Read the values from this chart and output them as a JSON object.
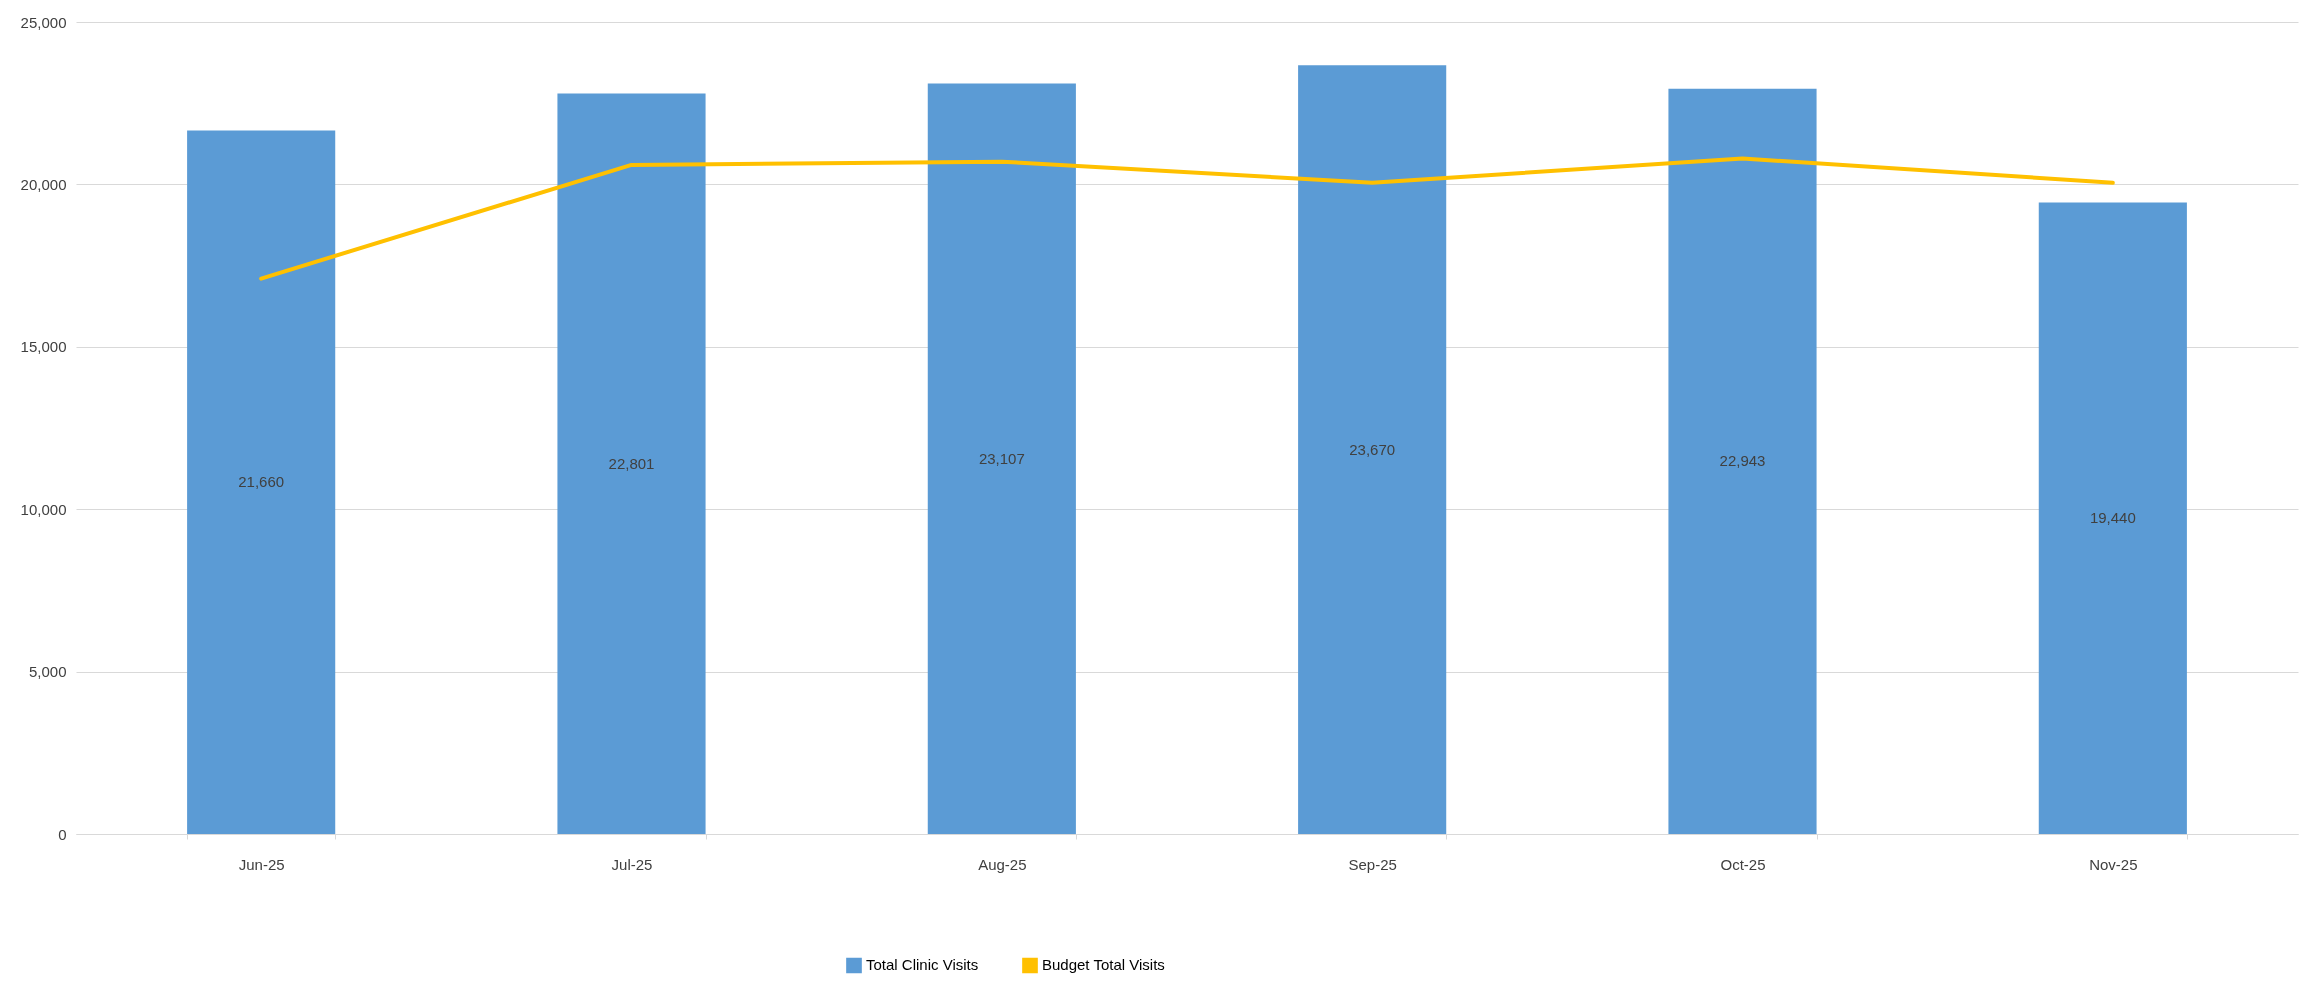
{
  "chart_data": {
    "type": "bar",
    "categories": [
      "Jun-25",
      "Jul-25",
      "Aug-25",
      "Sep-25",
      "Oct-25",
      "Nov-25"
    ],
    "series": [
      {
        "name": "Total Clinic Visits",
        "color": "#5b9bd5",
        "values": [
          21660,
          22801,
          23107,
          23670,
          22943,
          19440
        ],
        "value_labels": [
          "21,660",
          "22,801",
          "23,107",
          "23,670",
          "22,943",
          "19,440"
        ]
      },
      {
        "name": "Budget Total Visits",
        "type": "line",
        "color": "#ffc000",
        "values": [
          17100,
          20600,
          20700,
          20050,
          20800,
          20050
        ]
      }
    ],
    "ylim": [
      0,
      25000
    ],
    "yticks": [
      {
        "value": 0,
        "label": "0"
      },
      {
        "value": 5000,
        "label": "5,000"
      },
      {
        "value": 10000,
        "label": "10,000"
      },
      {
        "value": 15000,
        "label": "15,000"
      },
      {
        "value": 20000,
        "label": "20,000"
      },
      {
        "value": 25000,
        "label": "25,000"
      }
    ],
    "grid": "y",
    "legend": "bottom",
    "marker": "none",
    "line_style": "solid"
  }
}
